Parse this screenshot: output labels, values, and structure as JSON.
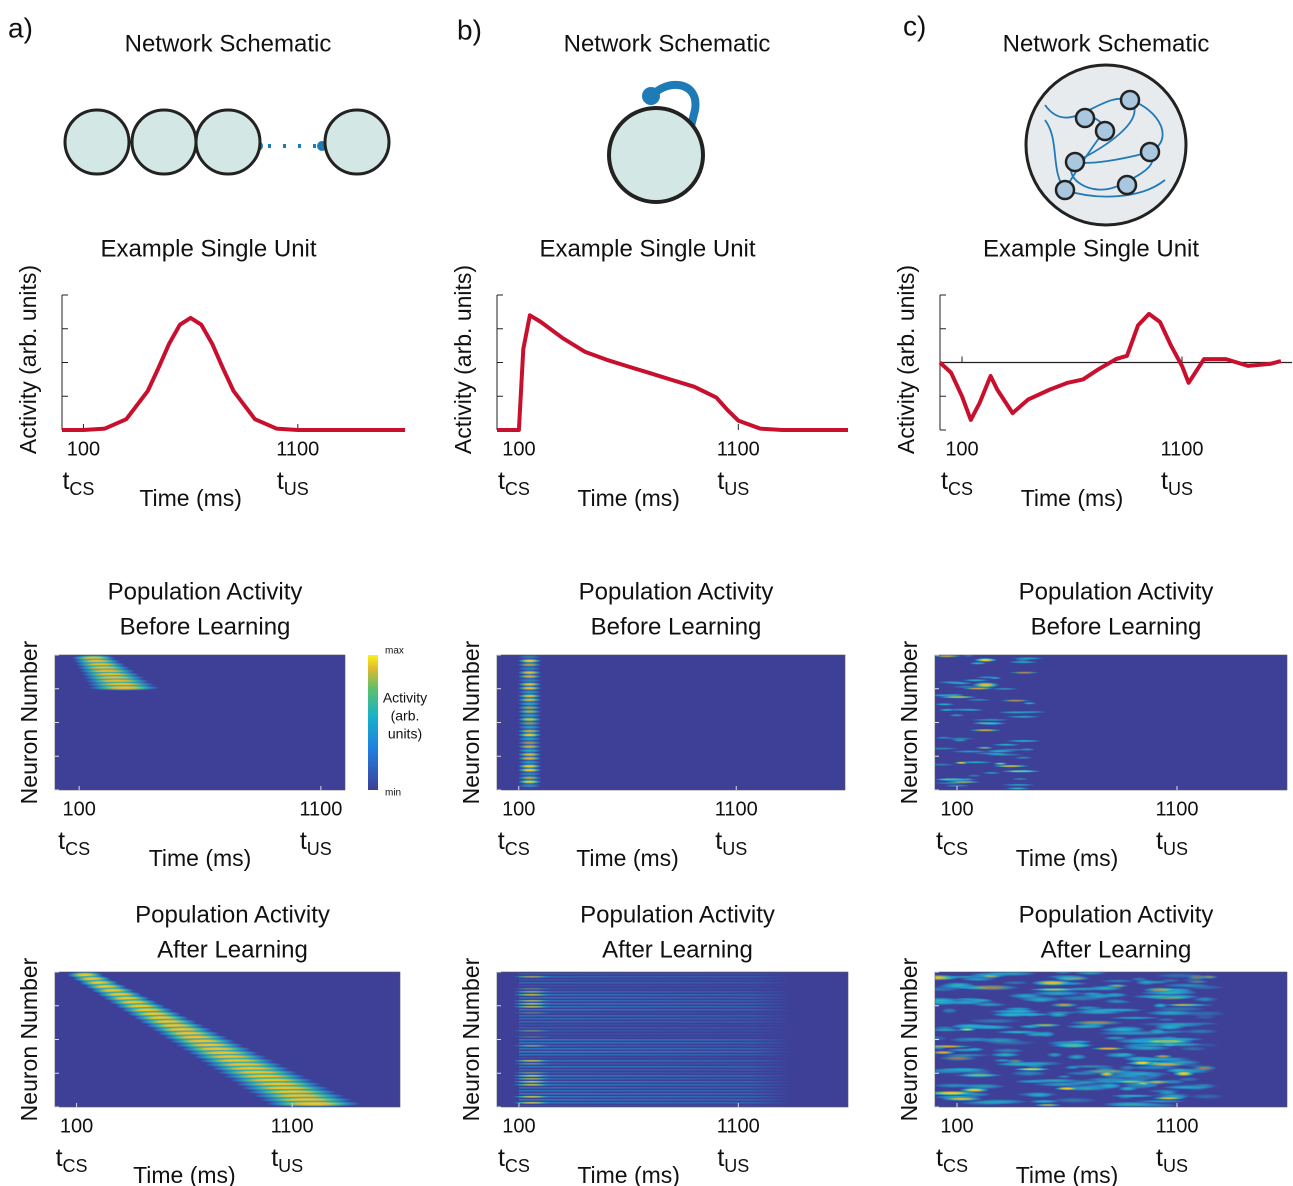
{
  "figure": {
    "panels": [
      {
        "label": "a)",
        "schematic_title": "Network Schematic"
      },
      {
        "label": "b)",
        "schematic_title": "Network Schematic"
      },
      {
        "label": "c)",
        "schematic_title": "Network Schematic"
      }
    ]
  },
  "chart_data": [
    {
      "type": "line",
      "title": "Example Single Unit",
      "ylabel": "Activity (arb. units)",
      "xlabel": "Time (ms)",
      "color": "#c8102e",
      "x": [
        0,
        100,
        200,
        300,
        400,
        450,
        500,
        550,
        600,
        650,
        700,
        750,
        800,
        900,
        1000,
        1100,
        1200,
        1300,
        1400,
        1500,
        1600
      ],
      "values": [
        0,
        0,
        0.01,
        0.08,
        0.29,
        0.46,
        0.64,
        0.78,
        0.83,
        0.78,
        0.64,
        0.46,
        0.29,
        0.08,
        0.01,
        0,
        0,
        0,
        0,
        0,
        0
      ],
      "xlim": [
        0,
        1600
      ],
      "ylim": [
        0,
        1
      ],
      "xticks": [
        100,
        1100
      ],
      "yticks": [
        0,
        0.25,
        0.5,
        0.75,
        1
      ],
      "annotations": [
        {
          "text": "t",
          "sub": "CS"
        },
        {
          "text": "t",
          "sub": "US"
        }
      ]
    },
    {
      "type": "line",
      "title": "Example Single Unit",
      "ylabel": "Activity (arb. units)",
      "xlabel": "Time (ms)",
      "color": "#c8102e",
      "x": [
        0,
        100,
        120,
        150,
        200,
        300,
        400,
        500,
        600,
        700,
        800,
        900,
        1000,
        1050,
        1100,
        1200,
        1300,
        1600
      ],
      "values": [
        0,
        0,
        0.6,
        0.85,
        0.8,
        0.68,
        0.58,
        0.52,
        0.47,
        0.42,
        0.37,
        0.32,
        0.24,
        0.15,
        0.07,
        0.01,
        0,
        0
      ],
      "xlim": [
        0,
        1600
      ],
      "ylim": [
        0,
        1
      ],
      "xticks": [
        100,
        1100
      ],
      "yticks": [
        0,
        0.25,
        0.5,
        0.75,
        1
      ],
      "annotations": [
        {
          "text": "t",
          "sub": "CS"
        },
        {
          "text": "t",
          "sub": "US"
        }
      ]
    },
    {
      "type": "line",
      "title": "Example Single Unit",
      "ylabel": "Activity (arb. units)",
      "xlabel": "Time (ms)",
      "color": "#c8102e",
      "zero_line": true,
      "x": [
        0,
        50,
        100,
        140,
        180,
        230,
        260,
        330,
        400,
        500,
        580,
        650,
        720,
        800,
        850,
        900,
        950,
        1000,
        1050,
        1100,
        1130,
        1170,
        1200,
        1300,
        1400,
        1500,
        1550
      ],
      "values": [
        0,
        -0.15,
        -0.5,
        -0.85,
        -0.6,
        -0.2,
        -0.4,
        -0.75,
        -0.55,
        -0.4,
        -0.3,
        -0.25,
        -0.1,
        0.05,
        0.1,
        0.55,
        0.72,
        0.6,
        0.25,
        -0.05,
        -0.3,
        -0.1,
        0.05,
        0.05,
        -0.05,
        -0.02,
        0.02
      ],
      "xlim": [
        0,
        1600
      ],
      "ylim": [
        -1,
        1
      ],
      "xticks": [
        100,
        1100
      ],
      "yticks": [
        -1,
        -0.5,
        0,
        0.5,
        1
      ],
      "annotations": [
        {
          "text": "t",
          "sub": "CS"
        },
        {
          "text": "t",
          "sub": "US"
        }
      ]
    },
    {
      "type": "heatmap",
      "title": [
        "Population Activity",
        "Before Learning"
      ],
      "ylabel": "Neuron Number",
      "xlabel": "Time (ms)",
      "xlim": [
        0,
        1200
      ],
      "xticks": [
        100,
        1100
      ],
      "annotations": [
        {
          "text": "t",
          "sub": "CS"
        },
        {
          "text": "t",
          "sub": "US"
        }
      ],
      "colorbar": {
        "max": "max",
        "min": "min",
        "label": [
          "Activity",
          "(arb.",
          "units)"
        ]
      }
    },
    {
      "type": "heatmap",
      "title": [
        "Population Activity",
        "Before Learning"
      ],
      "ylabel": "Neuron Number",
      "xlabel": "Time (ms)",
      "xlim": [
        0,
        1600
      ],
      "xticks": [
        100,
        1100
      ],
      "annotations": [
        {
          "text": "t",
          "sub": "CS"
        },
        {
          "text": "t",
          "sub": "US"
        }
      ]
    },
    {
      "type": "heatmap",
      "title": [
        "Population Activity",
        "Before Learning"
      ],
      "ylabel": "Neuron Number",
      "xlabel": "Time (ms)",
      "xlim": [
        0,
        1600
      ],
      "xticks": [
        100,
        1100
      ],
      "annotations": [
        {
          "text": "t",
          "sub": "CS"
        },
        {
          "text": "t",
          "sub": "US"
        }
      ]
    },
    {
      "type": "heatmap",
      "title": [
        "Population Activity",
        "After Learning"
      ],
      "ylabel": "Neuron Number",
      "xlabel": "Time (ms)",
      "xlim": [
        0,
        1600
      ],
      "xticks": [
        100,
        1100
      ],
      "annotations": [
        {
          "text": "t",
          "sub": "CS"
        },
        {
          "text": "t",
          "sub": "US"
        }
      ]
    },
    {
      "type": "heatmap",
      "title": [
        "Population Activity",
        "After Learning"
      ],
      "ylabel": "Neuron Number",
      "xlabel": "Time (ms)",
      "xlim": [
        0,
        1600
      ],
      "xticks": [
        100,
        1100
      ],
      "annotations": [
        {
          "text": "t",
          "sub": "CS"
        },
        {
          "text": "t",
          "sub": "US"
        }
      ]
    },
    {
      "type": "heatmap",
      "title": [
        "Population Activity",
        "After Learning"
      ],
      "ylabel": "Neuron Number",
      "xlabel": "Time (ms)",
      "xlim": [
        0,
        1600
      ],
      "xticks": [
        100,
        1100
      ],
      "annotations": [
        {
          "text": "t",
          "sub": "CS"
        },
        {
          "text": "t",
          "sub": "US"
        }
      ]
    }
  ]
}
